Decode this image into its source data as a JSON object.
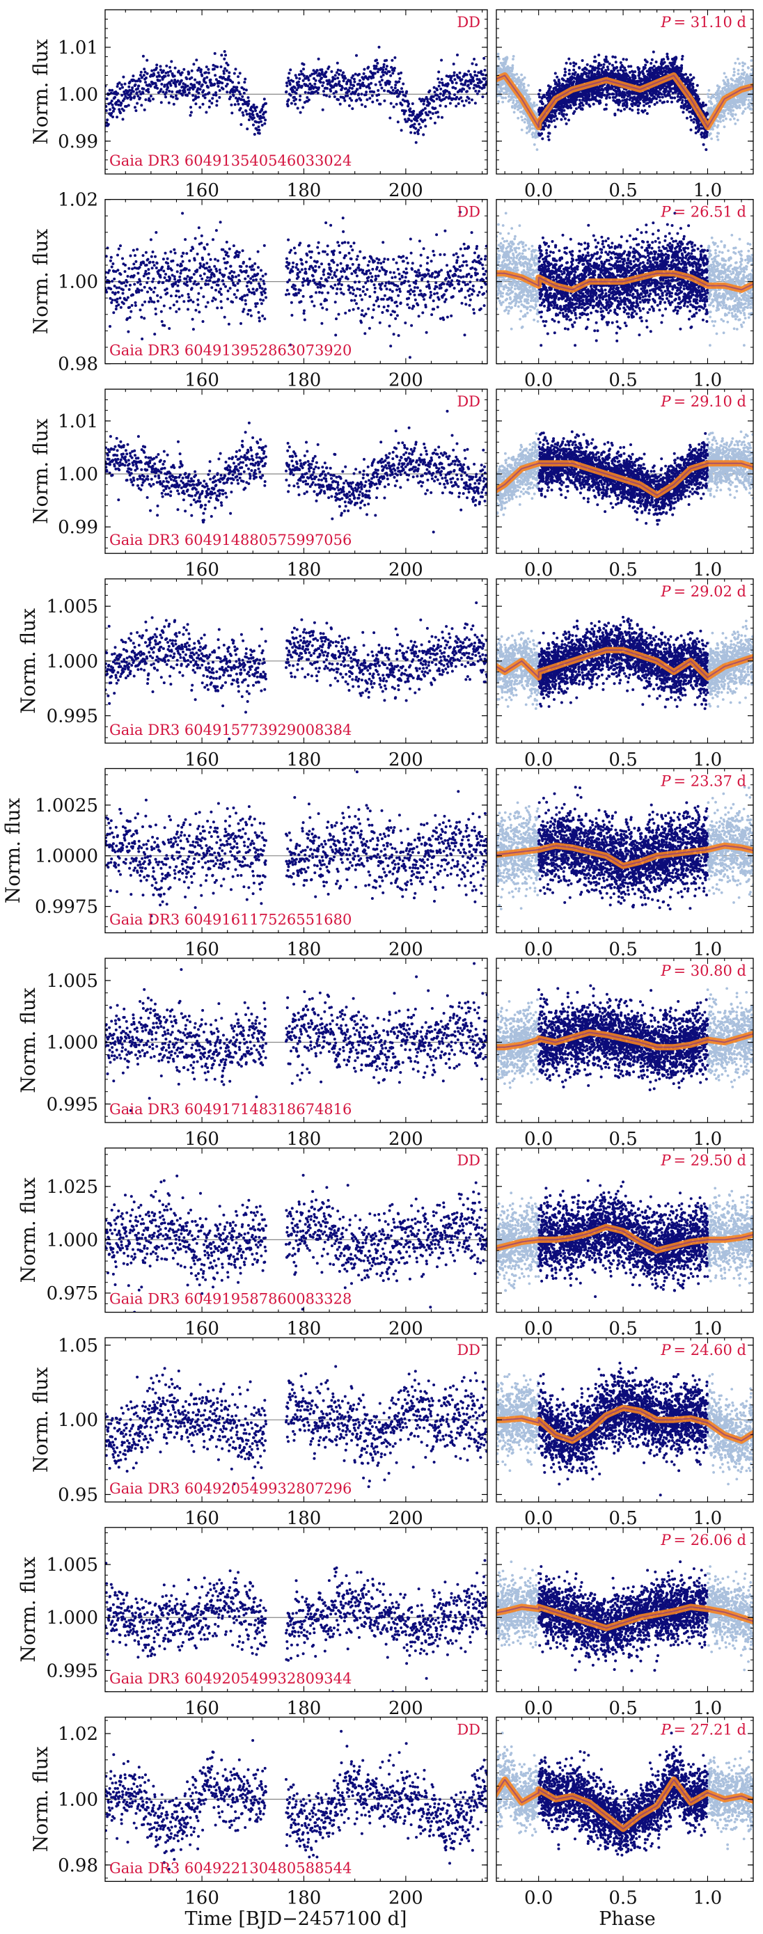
{
  "figure": {
    "xlabel_left": "Time [BJD−2457100 d]",
    "xlabel_right": "Phase",
    "ylabel": "Norm. flux",
    "colors": {
      "points": "#0c0c7a",
      "phase_points": "#aac0dd",
      "binned": "#f5821f",
      "binned_core": "#7a2f8e",
      "label": "#d4143f",
      "refline": "#888888"
    }
  },
  "chart_data": [
    {
      "type": "scatter",
      "star": "Gaia DR3 604913540546033024",
      "flag": "DD",
      "period_label": "P",
      "period_value": "= 31.10 d",
      "xlim": [
        141,
        216
      ],
      "ylim": [
        0.983,
        1.018
      ],
      "yticks": [
        0.99,
        1.0,
        1.01
      ],
      "yticklabels": [
        "0.99",
        "1.00",
        "1.01"
      ],
      "xticks": [
        160,
        180,
        200
      ],
      "xticklabels": [
        "160",
        "180",
        "200"
      ],
      "phase_xlim": [
        -0.25,
        1.27
      ],
      "phase_xticks": [
        0,
        0.5,
        1.0
      ],
      "phase_xticklabels": [
        "0.0",
        "0.5",
        "1.0"
      ],
      "binned_phase": [
        0.0,
        0.1,
        0.2,
        0.3,
        0.4,
        0.5,
        0.6,
        0.7,
        0.8,
        0.9,
        1.0
      ],
      "binned_flux": [
        0.994,
        0.999,
        1.001,
        1.002,
        1.003,
        1.002,
        1.001,
        1.0025,
        1.004,
        0.999,
        0.993
      ],
      "scatter_amp": 0.0022
    },
    {
      "type": "scatter",
      "star": "Gaia DR3 604913952863073920",
      "flag": "DD",
      "period_label": "P",
      "period_value": "= 26.51 d",
      "xlim": [
        141,
        216
      ],
      "ylim": [
        0.98,
        1.02
      ],
      "yticks": [
        0.98,
        1.0,
        1.02
      ],
      "yticklabels": [
        "0.98",
        "1.00",
        "1.02"
      ],
      "xticks": [
        160,
        180,
        200
      ],
      "xticklabels": [
        "160",
        "180",
        "200"
      ],
      "phase_xlim": [
        -0.25,
        1.27
      ],
      "phase_xticks": [
        0,
        0.5,
        1.0
      ],
      "phase_xticklabels": [
        "0.0",
        "0.5",
        "1.0"
      ],
      "binned_phase": [
        0.0,
        0.1,
        0.2,
        0.3,
        0.4,
        0.5,
        0.6,
        0.7,
        0.8,
        0.9,
        1.0
      ],
      "binned_flux": [
        1.001,
        0.999,
        0.998,
        1.0,
        1.0,
        1.0,
        1.001,
        1.002,
        1.002,
        1.001,
        0.999
      ],
      "scatter_amp": 0.0045
    },
    {
      "type": "scatter",
      "star": "Gaia DR3 604914880575997056",
      "flag": "DD",
      "period_label": "P",
      "period_value": "= 29.10 d",
      "xlim": [
        141,
        216
      ],
      "ylim": [
        0.985,
        1.016
      ],
      "yticks": [
        0.99,
        1.0,
        1.01
      ],
      "yticklabels": [
        "0.99",
        "1.00",
        "1.01"
      ],
      "xticks": [
        160,
        180,
        200
      ],
      "xticklabels": [
        "160",
        "180",
        "200"
      ],
      "phase_xlim": [
        -0.25,
        1.27
      ],
      "phase_xticks": [
        0,
        0.5,
        1.0
      ],
      "phase_xticklabels": [
        "0.0",
        "0.5",
        "1.0"
      ],
      "binned_phase": [
        0.0,
        0.1,
        0.2,
        0.3,
        0.4,
        0.5,
        0.6,
        0.7,
        0.8,
        0.9,
        1.0
      ],
      "binned_flux": [
        1.002,
        1.002,
        1.002,
        1.001,
        1.0,
        0.999,
        0.998,
        0.996,
        0.998,
        1.001,
        1.002
      ],
      "scatter_amp": 0.0022
    },
    {
      "type": "scatter",
      "star": "Gaia DR3 604915773929008384",
      "flag": "",
      "period_label": "P",
      "period_value": "= 29.02 d",
      "xlim": [
        141,
        216
      ],
      "ylim": [
        0.9925,
        1.0075
      ],
      "yticks": [
        0.995,
        1.0,
        1.005
      ],
      "yticklabels": [
        "0.995",
        "1.000",
        "1.005"
      ],
      "xticks": [
        160,
        180,
        200
      ],
      "xticklabels": [
        "160",
        "180",
        "200"
      ],
      "phase_xlim": [
        -0.25,
        1.27
      ],
      "phase_xticks": [
        0,
        0.5,
        1.0
      ],
      "phase_xticklabels": [
        "0.0",
        "0.5",
        "1.0"
      ],
      "binned_phase": [
        0.0,
        0.1,
        0.2,
        0.3,
        0.4,
        0.5,
        0.6,
        0.7,
        0.8,
        0.9,
        1.0
      ],
      "binned_flux": [
        0.999,
        0.9995,
        1.0,
        1.0005,
        1.001,
        1.001,
        1.0005,
        1.0,
        0.999,
        1.0,
        0.9985
      ],
      "scatter_amp": 0.0012
    },
    {
      "type": "scatter",
      "star": "Gaia DR3 604916117526551680",
      "flag": "",
      "period_label": "P",
      "period_value": "= 23.37 d",
      "xlim": [
        141,
        216
      ],
      "ylim": [
        0.9962,
        1.0043
      ],
      "yticks": [
        0.9975,
        1.0,
        1.0025
      ],
      "yticklabels": [
        "0.9975",
        "1.0000",
        "1.0025"
      ],
      "xticks": [
        160,
        180,
        200
      ],
      "xticklabels": [
        "160",
        "180",
        "200"
      ],
      "phase_xlim": [
        -0.25,
        1.27
      ],
      "phase_xticks": [
        0,
        0.5,
        1.0
      ],
      "phase_xticklabels": [
        "0.0",
        "0.5",
        "1.0"
      ],
      "binned_phase": [
        0.0,
        0.1,
        0.2,
        0.3,
        0.4,
        0.5,
        0.6,
        0.7,
        0.8,
        0.9,
        1.0
      ],
      "binned_flux": [
        1.0003,
        1.0005,
        1.0004,
        1.0002,
        1.0,
        0.9995,
        0.9997,
        1.0,
        1.0001,
        1.0002,
        1.0003
      ],
      "scatter_amp": 0.0009
    },
    {
      "type": "scatter",
      "star": "Gaia DR3 604917148318674816",
      "flag": "",
      "period_label": "P",
      "period_value": "= 30.80 d",
      "xlim": [
        141,
        216
      ],
      "ylim": [
        0.9935,
        1.0068
      ],
      "yticks": [
        0.995,
        1.0,
        1.005
      ],
      "yticklabels": [
        "0.995",
        "1.000",
        "1.005"
      ],
      "xticks": [
        160,
        180,
        200
      ],
      "xticklabels": [
        "160",
        "180",
        "200"
      ],
      "phase_xlim": [
        -0.25,
        1.27
      ],
      "phase_xticks": [
        0,
        0.5,
        1.0
      ],
      "phase_xticklabels": [
        "0.0",
        "0.5",
        "1.0"
      ],
      "binned_phase": [
        0.0,
        0.1,
        0.2,
        0.3,
        0.4,
        0.5,
        0.6,
        0.7,
        0.8,
        0.9,
        1.0
      ],
      "binned_flux": [
        1.0003,
        1.0,
        1.0004,
        1.0008,
        1.0006,
        1.0003,
        1.0,
        0.9996,
        0.9996,
        0.9998,
        1.0002
      ],
      "scatter_amp": 0.0013
    },
    {
      "type": "scatter",
      "star": "Gaia DR3 604919587860083328",
      "flag": "DD",
      "period_label": "P",
      "period_value": "= 29.50 d",
      "xlim": [
        141,
        216
      ],
      "ylim": [
        0.966,
        1.043
      ],
      "yticks": [
        0.975,
        1.0,
        1.025
      ],
      "yticklabels": [
        "0.975",
        "1.000",
        "1.025"
      ],
      "xticks": [
        160,
        180,
        200
      ],
      "xticklabels": [
        "160",
        "180",
        "200"
      ],
      "phase_xlim": [
        -0.25,
        1.27
      ],
      "phase_xticks": [
        0,
        0.5,
        1.0
      ],
      "phase_xticklabels": [
        "0.0",
        "0.5",
        "1.0"
      ],
      "binned_phase": [
        0.0,
        0.1,
        0.2,
        0.3,
        0.4,
        0.5,
        0.6,
        0.7,
        0.8,
        0.9,
        1.0
      ],
      "binned_flux": [
        1.0,
        1.0,
        1.001,
        1.003,
        1.006,
        1.004,
        0.999,
        0.995,
        0.997,
        0.999,
        1.0
      ],
      "scatter_amp": 0.008
    },
    {
      "type": "scatter",
      "star": "Gaia DR3 604920549932807296",
      "flag": "DD",
      "period_label": "P",
      "period_value": "= 24.60 d",
      "xlim": [
        141,
        216
      ],
      "ylim": [
        0.945,
        1.055
      ],
      "yticks": [
        0.95,
        1.0,
        1.05
      ],
      "yticklabels": [
        "0.95",
        "1.00",
        "1.05"
      ],
      "xticks": [
        160,
        180,
        200
      ],
      "xticklabels": [
        "160",
        "180",
        "200"
      ],
      "phase_xlim": [
        -0.25,
        1.27
      ],
      "phase_xticks": [
        0,
        0.5,
        1.0
      ],
      "phase_xticklabels": [
        "0.0",
        "0.5",
        "1.0"
      ],
      "binned_phase": [
        0.0,
        0.1,
        0.2,
        0.3,
        0.4,
        0.5,
        0.6,
        0.7,
        0.8,
        0.9,
        1.0
      ],
      "binned_flux": [
        1.0,
        0.99,
        0.986,
        0.993,
        1.003,
        1.008,
        1.006,
        1.0,
        1.0,
        1.001,
        0.998
      ],
      "scatter_amp": 0.011
    },
    {
      "type": "scatter",
      "star": "Gaia DR3 604920549932809344",
      "flag": "",
      "period_label": "P",
      "period_value": "= 26.06 d",
      "xlim": [
        141,
        216
      ],
      "ylim": [
        0.993,
        1.0085
      ],
      "yticks": [
        0.995,
        1.0,
        1.005
      ],
      "yticklabels": [
        "0.995",
        "1.000",
        "1.005"
      ],
      "xticks": [
        160,
        180,
        200
      ],
      "xticklabels": [
        "160",
        "180",
        "200"
      ],
      "phase_xlim": [
        -0.25,
        1.27
      ],
      "phase_xticks": [
        0,
        0.5,
        1.0
      ],
      "phase_xticklabels": [
        "0.0",
        "0.5",
        "1.0"
      ],
      "binned_phase": [
        0.0,
        0.1,
        0.2,
        0.3,
        0.4,
        0.5,
        0.6,
        0.7,
        0.8,
        0.9,
        1.0
      ],
      "binned_flux": [
        1.001,
        1.0005,
        1.0,
        0.9995,
        0.999,
        0.9995,
        1.0,
        1.0003,
        1.0006,
        1.001,
        1.0008
      ],
      "scatter_amp": 0.0014
    },
    {
      "type": "scatter",
      "star": "Gaia DR3 604922130480588544",
      "flag": "DD",
      "period_label": "P",
      "period_value": "= 27.21 d",
      "xlim": [
        141,
        216
      ],
      "ylim": [
        0.975,
        1.025
      ],
      "yticks": [
        0.98,
        1.0,
        1.02
      ],
      "yticklabels": [
        "0.98",
        "1.00",
        "1.02"
      ],
      "xticks": [
        160,
        180,
        200
      ],
      "xticklabels": [
        "160",
        "180",
        "200"
      ],
      "phase_xlim": [
        -0.25,
        1.27
      ],
      "phase_xticks": [
        0,
        0.5,
        1.0
      ],
      "phase_xticklabels": [
        "0.0",
        "0.5",
        "1.0"
      ],
      "binned_phase": [
        0.0,
        0.1,
        0.2,
        0.3,
        0.4,
        0.5,
        0.6,
        0.7,
        0.8,
        0.9,
        1.0
      ],
      "binned_flux": [
        1.003,
        1.0,
        1.001,
        0.999,
        0.995,
        0.991,
        0.995,
        0.998,
        1.006,
        0.999,
        1.002
      ],
      "scatter_amp": 0.0045
    }
  ]
}
